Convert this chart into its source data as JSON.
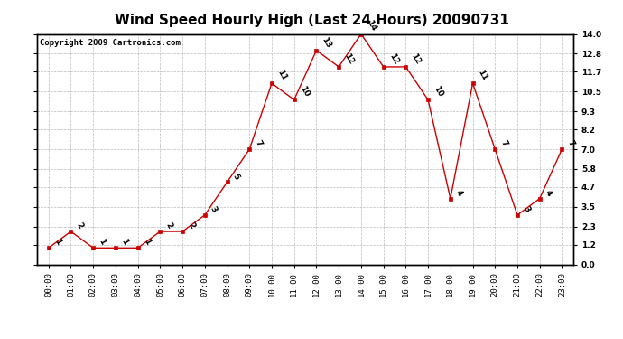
{
  "title": "Wind Speed Hourly High (Last 24 Hours) 20090731",
  "copyright": "Copyright 2009 Cartronics.com",
  "hours": [
    "00:00",
    "01:00",
    "02:00",
    "03:00",
    "04:00",
    "05:00",
    "06:00",
    "07:00",
    "08:00",
    "09:00",
    "10:00",
    "11:00",
    "12:00",
    "13:00",
    "14:00",
    "15:00",
    "16:00",
    "17:00",
    "18:00",
    "19:00",
    "20:00",
    "21:00",
    "22:00",
    "23:00"
  ],
  "values": [
    1,
    2,
    1,
    1,
    1,
    2,
    2,
    3,
    5,
    7,
    11,
    10,
    13,
    12,
    14,
    12,
    12,
    10,
    4,
    11,
    7,
    3,
    4,
    7
  ],
  "ylim": [
    0,
    14.0
  ],
  "yticks": [
    0.0,
    1.2,
    2.3,
    3.5,
    4.7,
    5.8,
    7.0,
    8.2,
    9.3,
    10.5,
    11.7,
    12.8,
    14.0
  ],
  "line_color": "#cc0000",
  "marker_color": "#cc0000",
  "bg_color": "#ffffff",
  "plot_bg_color": "#ffffff",
  "grid_color": "#bbbbbb",
  "title_fontsize": 11,
  "label_fontsize": 6.5,
  "annotation_fontsize": 6.5,
  "copyright_fontsize": 6.5
}
